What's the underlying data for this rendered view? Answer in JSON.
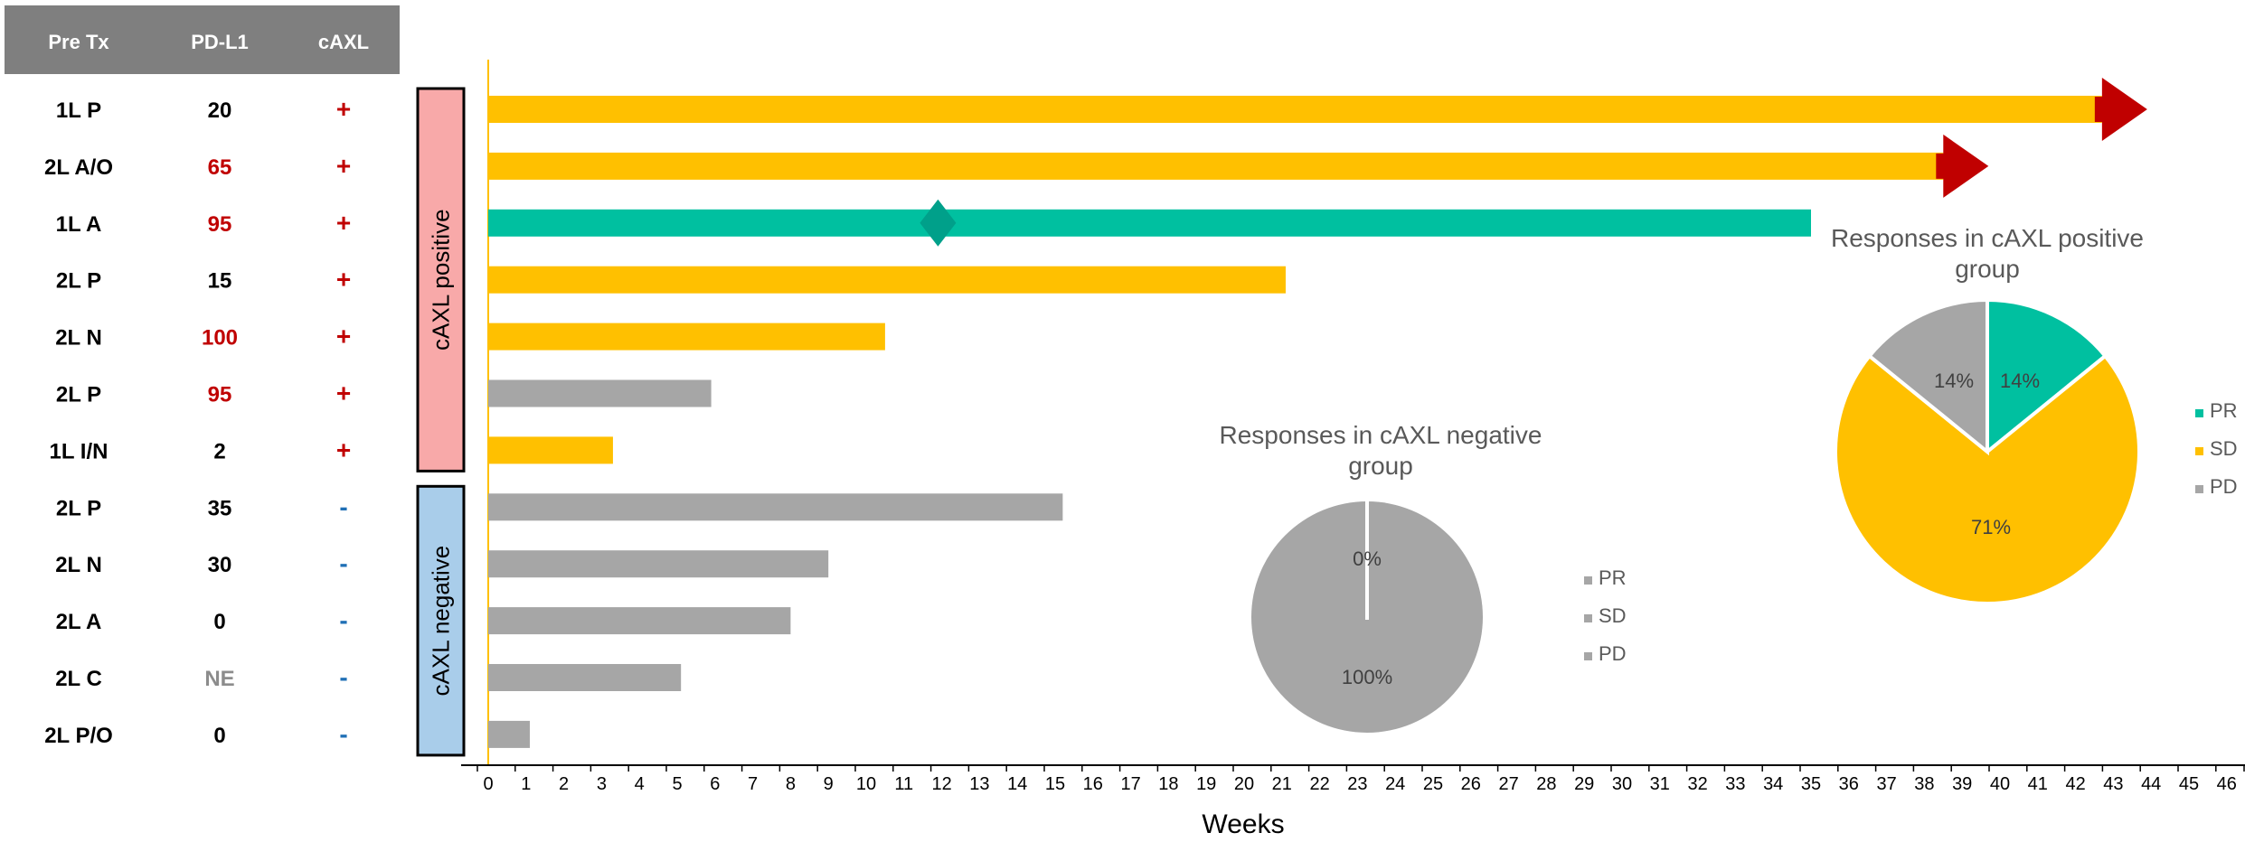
{
  "colors": {
    "header_bg": "#7f7f7f",
    "header_text": "#ffffff",
    "sd": "#ffc000",
    "pr": "#00c0a0",
    "pd": "#a6a6a6",
    "arrow": "#c00000",
    "marker": "#00a08a",
    "positive_box": "#f8a9a9",
    "negative_box": "#a9cdea",
    "red_text": "#c00000",
    "blue_text": "#1f6fb5",
    "gray_text": "#8c8c8c",
    "axis": "#000000",
    "zero_line": "#ffc000"
  },
  "table": {
    "headers": [
      "Pre Tx",
      "PD-L1",
      "cAXL"
    ],
    "rows": [
      {
        "pretx": "1L P",
        "pdl1": "20",
        "pdl1_style": "normal",
        "caxl": "+"
      },
      {
        "pretx": "2L A/O",
        "pdl1": "65",
        "pdl1_style": "red",
        "caxl": "+"
      },
      {
        "pretx": "1L A",
        "pdl1": "95",
        "pdl1_style": "red",
        "caxl": "+"
      },
      {
        "pretx": "2L P",
        "pdl1": "15",
        "pdl1_style": "normal",
        "caxl": "+"
      },
      {
        "pretx": "2L N",
        "pdl1": "100",
        "pdl1_style": "red",
        "caxl": "+"
      },
      {
        "pretx": "2L P",
        "pdl1": "95",
        "pdl1_style": "red",
        "caxl": "+"
      },
      {
        "pretx": "1L I/N",
        "pdl1": "2",
        "pdl1_style": "normal",
        "caxl": "+"
      },
      {
        "pretx": "2L P",
        "pdl1": "35",
        "pdl1_style": "normal",
        "caxl": "-"
      },
      {
        "pretx": "2L N",
        "pdl1": "30",
        "pdl1_style": "normal",
        "caxl": "-"
      },
      {
        "pretx": "2L A",
        "pdl1": "0",
        "pdl1_style": "normal",
        "caxl": "-"
      },
      {
        "pretx": "2L C",
        "pdl1": "NE",
        "pdl1_style": "gray",
        "caxl": "-"
      },
      {
        "pretx": "2L P/O",
        "pdl1": "0",
        "pdl1_style": "normal",
        "caxl": "-"
      }
    ]
  },
  "groups": [
    {
      "label": "cAXL positive",
      "first_row": 0,
      "last_row": 6,
      "color": "#f8a9a9"
    },
    {
      "label": "cAXL negative",
      "first_row": 7,
      "last_row": 11,
      "color": "#a9cdea"
    }
  ],
  "chart_data": [
    {
      "type": "bar",
      "orientation": "horizontal",
      "xlabel": "Weeks",
      "xlim": [
        0,
        46
      ],
      "xticks": [
        0,
        1,
        2,
        3,
        4,
        5,
        6,
        7,
        8,
        9,
        10,
        11,
        12,
        13,
        14,
        15,
        16,
        17,
        18,
        19,
        20,
        21,
        22,
        23,
        24,
        25,
        26,
        27,
        28,
        29,
        30,
        31,
        32,
        33,
        34,
        35,
        36,
        37,
        38,
        39,
        40,
        41,
        42,
        43,
        44,
        45,
        46
      ],
      "bars": [
        {
          "row": 0,
          "weeks": 42.7,
          "response": "SD",
          "ongoing": true
        },
        {
          "row": 1,
          "weeks": 38.5,
          "response": "SD",
          "ongoing": true
        },
        {
          "row": 2,
          "weeks": 35.0,
          "response": "PR",
          "ongoing": false,
          "marker_week": 11.9
        },
        {
          "row": 3,
          "weeks": 21.1,
          "response": "SD",
          "ongoing": false
        },
        {
          "row": 4,
          "weeks": 10.5,
          "response": "SD",
          "ongoing": false
        },
        {
          "row": 5,
          "weeks": 5.9,
          "response": "PD",
          "ongoing": false
        },
        {
          "row": 6,
          "weeks": 3.3,
          "response": "SD",
          "ongoing": false
        },
        {
          "row": 7,
          "weeks": 15.2,
          "response": "PD",
          "ongoing": false
        },
        {
          "row": 8,
          "weeks": 9.0,
          "response": "PD",
          "ongoing": false
        },
        {
          "row": 9,
          "weeks": 8.0,
          "response": "PD",
          "ongoing": false
        },
        {
          "row": 10,
          "weeks": 5.1,
          "response": "PD",
          "ongoing": false
        },
        {
          "row": 11,
          "weeks": 1.1,
          "response": "PD",
          "ongoing": false
        }
      ]
    },
    {
      "type": "pie",
      "title_lines": [
        "Responses in cAXL positive",
        "group"
      ],
      "slices": [
        {
          "label": "PR",
          "value": 14,
          "text": "14%",
          "color": "#00c0a0"
        },
        {
          "label": "SD",
          "value": 71,
          "text": "71%",
          "color": "#ffc000"
        },
        {
          "label": "PD",
          "value": 14,
          "text": "14%",
          "color": "#a6a6a6"
        }
      ],
      "legend": [
        {
          "label": "PR",
          "color": "#00c0a0"
        },
        {
          "label": "SD",
          "color": "#ffc000"
        },
        {
          "label": "PD",
          "color": "#a6a6a6"
        }
      ],
      "legend_placement": "right"
    },
    {
      "type": "pie",
      "title_lines": [
        "Responses in cAXL negative",
        "group"
      ],
      "slices": [
        {
          "label": "PR",
          "value": 0,
          "text": "0%",
          "color": "#a6a6a6"
        },
        {
          "label": "SD",
          "value": 0,
          "text": "",
          "color": "#a6a6a6"
        },
        {
          "label": "PD",
          "value": 100,
          "text": "100%",
          "color": "#a6a6a6"
        }
      ],
      "legend": [
        {
          "label": "PR",
          "color": "#a6a6a6"
        },
        {
          "label": "SD",
          "color": "#a6a6a6"
        },
        {
          "label": "PD",
          "color": "#a6a6a6"
        }
      ],
      "legend_placement": "right"
    }
  ]
}
